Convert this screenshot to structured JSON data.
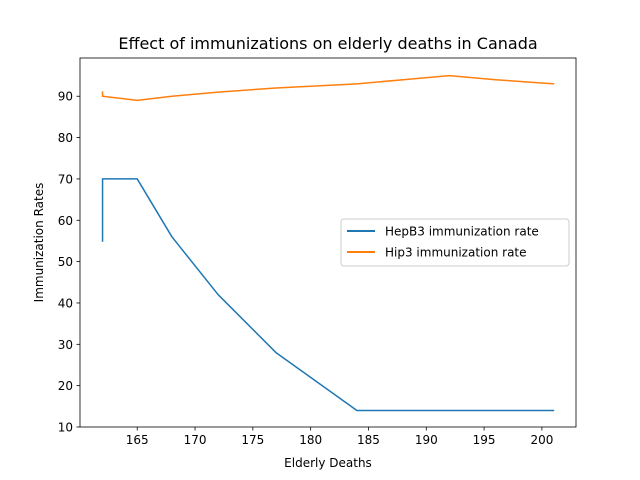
{
  "chart_data": {
    "type": "line",
    "title": "Effect of immunizations on elderly deaths in Canada",
    "xlabel": "Elderly Deaths",
    "ylabel": "Immunization Rates",
    "xlim": [
      160.05,
      202.95
    ],
    "ylim": [
      10,
      99.25
    ],
    "xticks": [
      165,
      170,
      175,
      180,
      185,
      190,
      195,
      200
    ],
    "yticks": [
      10,
      20,
      30,
      40,
      50,
      60,
      70,
      80,
      90
    ],
    "grid": false,
    "legend_position": "center-right",
    "series": [
      {
        "name": "HepB3 immunization rate",
        "color": "#1f77b4",
        "x": [
          162,
          162,
          165,
          168,
          172,
          177,
          184,
          188,
          192,
          196,
          201
        ],
        "y": [
          55,
          70,
          70,
          56,
          42,
          28,
          14,
          14,
          14,
          14,
          14
        ]
      },
      {
        "name": "Hip3 immunization rate",
        "color": "#ff7f0e",
        "x": [
          162,
          162,
          165,
          168,
          172,
          177,
          184,
          188,
          192,
          196,
          201
        ],
        "y": [
          91,
          90,
          89,
          90,
          91,
          92,
          93,
          94,
          95,
          94,
          93
        ]
      }
    ]
  }
}
